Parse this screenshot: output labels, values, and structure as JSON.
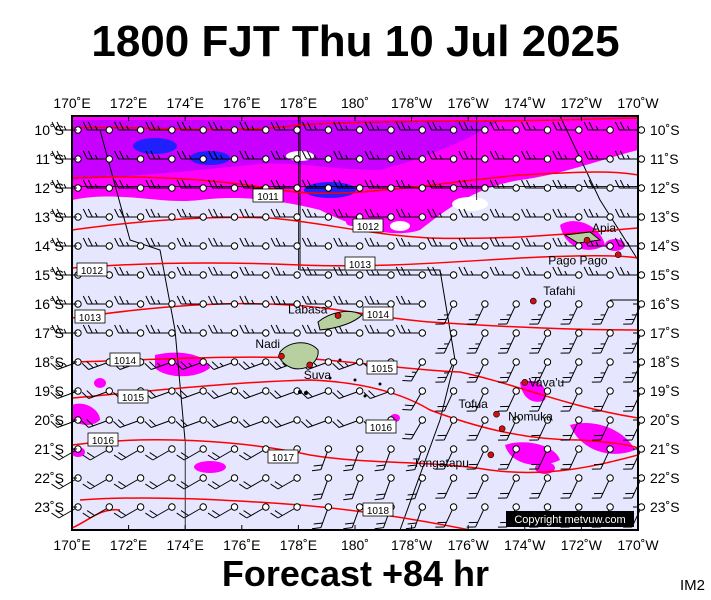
{
  "title": "1800 FJT Thu 10 Jul 2025",
  "footer": "Forecast +84 hr",
  "product_code": "IM2",
  "copyright": "Copyright metvuw.com",
  "lon_labels": [
    "170˚E",
    "172˚E",
    "174˚E",
    "176˚E",
    "178˚E",
    "180˚",
    "178˚W",
    "176˚W",
    "174˚W",
    "172˚W",
    "170˚W"
  ],
  "lat_labels": [
    "10˚S",
    "11˚S",
    "12˚S",
    "13˚S",
    "14˚S",
    "15˚S",
    "16˚S",
    "17˚S",
    "18˚S",
    "19˚S",
    "20˚S",
    "21˚S",
    "22˚S",
    "23˚S"
  ],
  "isobar_labels": [
    "1011",
    "1012",
    "1013",
    "1012",
    "1013",
    "1014",
    "1014",
    "1015",
    "1015",
    "1016",
    "1016",
    "1017",
    "1018"
  ],
  "places": [
    {
      "name": "Apia",
      "lon": -171.8,
      "lat": -13.8
    },
    {
      "name": "Pago Pago",
      "lon": -170.7,
      "lat": -14.3
    },
    {
      "name": "Tafahi",
      "lon": -173.7,
      "lat": -15.9
    },
    {
      "name": "Labasa",
      "lon": 179.4,
      "lat": -16.4
    },
    {
      "name": "Nadi",
      "lon": 177.4,
      "lat": -17.8
    },
    {
      "name": "Suva",
      "lon": 178.4,
      "lat": -18.1
    },
    {
      "name": "Vava'u",
      "lon": -174.0,
      "lat": -18.7
    },
    {
      "name": "Tofua",
      "lon": -175.0,
      "lat": -19.8
    },
    {
      "name": "Nomuka",
      "lon": -174.8,
      "lat": -20.3
    },
    {
      "name": "Tongatapu",
      "lon": -175.2,
      "lat": -21.2
    }
  ],
  "legend": {
    "precip_colors": [
      "#ff00ff",
      "#c800ff",
      "#0000ff"
    ],
    "isobar_color": "#ff0000",
    "background": "#e6e6ff"
  }
}
